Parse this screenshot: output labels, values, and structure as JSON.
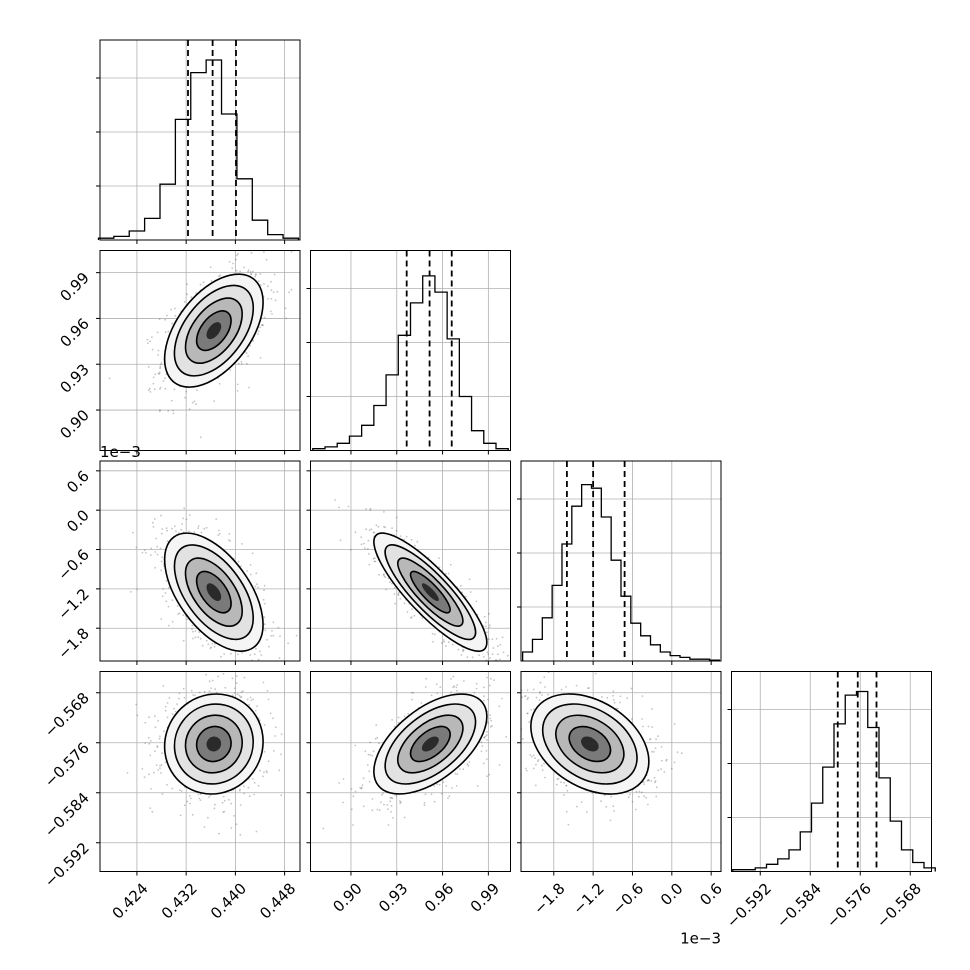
{
  "chart_data": {
    "type": "corner",
    "grid": true,
    "parameters": [
      {
        "ticks": [
          0.424,
          0.432,
          0.44,
          0.448
        ],
        "tick_labels": [
          "0.424",
          "0.432",
          "0.440",
          "0.448"
        ],
        "range": [
          0.418,
          0.4505
        ],
        "scale_offset": ""
      },
      {
        "ticks": [
          0.9,
          0.93,
          0.96,
          0.99
        ],
        "tick_labels": [
          "0.90",
          "0.93",
          "0.96",
          "0.99"
        ],
        "range": [
          0.8735,
          1.0045
        ],
        "scale_offset": ""
      },
      {
        "ticks": [
          -1.8,
          -1.2,
          -0.6,
          0.0,
          0.6
        ],
        "tick_labels": [
          "−1.8",
          "−1.2",
          "−0.6",
          "0.0",
          "0.6"
        ],
        "range": [
          -2.3,
          0.75
        ],
        "scale_offset": "1e−3"
      },
      {
        "ticks": [
          -0.592,
          -0.584,
          -0.576,
          -0.568
        ],
        "tick_labels": [
          "−0.592",
          "−0.584",
          "−0.576",
          "−0.568"
        ],
        "range": [
          -0.5966,
          -0.5646
        ],
        "scale_offset": ""
      }
    ],
    "histograms": [
      {
        "quantiles": [
          0.4323,
          0.4363,
          0.4401
        ],
        "x": [
          0.419,
          0.4215,
          0.424,
          0.4265,
          0.429,
          0.4315,
          0.434,
          0.4365,
          0.439,
          0.4415,
          0.444,
          0.4465,
          0.449
        ],
        "density": [
          0.01,
          0.02,
          0.05,
          0.12,
          0.31,
          0.67,
          0.93,
          1.0,
          0.7,
          0.34,
          0.11,
          0.03,
          0.01
        ]
      },
      {
        "quantiles": [
          0.9365,
          0.9515,
          0.966
        ],
        "x": [
          0.879,
          0.887,
          0.895,
          0.903,
          0.911,
          0.919,
          0.927,
          0.935,
          0.943,
          0.951,
          0.959,
          0.967,
          0.975,
          0.983,
          0.991,
          0.999
        ],
        "density": [
          0.01,
          0.02,
          0.04,
          0.08,
          0.14,
          0.25,
          0.42,
          0.64,
          0.82,
          0.97,
          0.88,
          0.62,
          0.3,
          0.11,
          0.04,
          0.01
        ],
        "note": ""
      },
      {
        "quantiles": [
          -1.6,
          -1.2,
          -0.72
        ],
        "x": [
          -2.2,
          -2.05,
          -1.9,
          -1.75,
          -1.6,
          -1.45,
          -1.3,
          -1.15,
          -1.0,
          -0.85,
          -0.7,
          -0.55,
          -0.4,
          -0.25,
          -0.1,
          0.05,
          0.2,
          0.35,
          0.5,
          0.65
        ],
        "density": [
          0.05,
          0.12,
          0.24,
          0.42,
          0.65,
          0.86,
          0.98,
          0.96,
          0.8,
          0.56,
          0.36,
          0.21,
          0.14,
          0.09,
          0.05,
          0.03,
          0.02,
          0.01,
          0.01,
          0.005
        ]
      },
      {
        "quantiles": [
          -0.5796,
          -0.5764,
          -0.5734
        ],
        "x": [
          -0.5955,
          -0.5937,
          -0.5919,
          -0.5901,
          -0.5883,
          -0.5865,
          -0.5847,
          -0.5829,
          -0.5811,
          -0.5793,
          -0.5775,
          -0.5757,
          -0.5739,
          -0.5721,
          -0.5703,
          -0.5685,
          -0.5667,
          -0.5649
        ],
        "density": [
          0.01,
          0.01,
          0.02,
          0.04,
          0.07,
          0.12,
          0.22,
          0.38,
          0.58,
          0.82,
          0.98,
          1.0,
          0.8,
          0.52,
          0.28,
          0.12,
          0.05,
          0.02
        ]
      }
    ],
    "pairs": [
      {
        "row": 1,
        "col": 0,
        "mean": [
          0.4365,
          0.952
        ],
        "sd": [
          0.004,
          0.0185
        ],
        "rho": 0.5
      },
      {
        "row": 2,
        "col": 0,
        "mean": [
          0.4365,
          -1.25
        ],
        "sd": [
          0.004,
          0.45
        ],
        "rho": -0.55
      },
      {
        "row": 2,
        "col": 1,
        "mean": [
          0.952,
          -1.25
        ],
        "sd": [
          0.0185,
          0.45
        ],
        "rho": -0.85
      },
      {
        "row": 3,
        "col": 0,
        "mean": [
          0.4365,
          -0.5762
        ],
        "sd": [
          0.004,
          0.004
        ],
        "rho": 0.05
      },
      {
        "row": 3,
        "col": 1,
        "mean": [
          0.952,
          -0.5762
        ],
        "sd": [
          0.0185,
          0.004
        ],
        "rho": 0.55
      },
      {
        "row": 3,
        "col": 2,
        "mean": [
          -1.25,
          -0.5762
        ],
        "sd": [
          0.45,
          0.004
        ],
        "rho": -0.35
      }
    ]
  }
}
